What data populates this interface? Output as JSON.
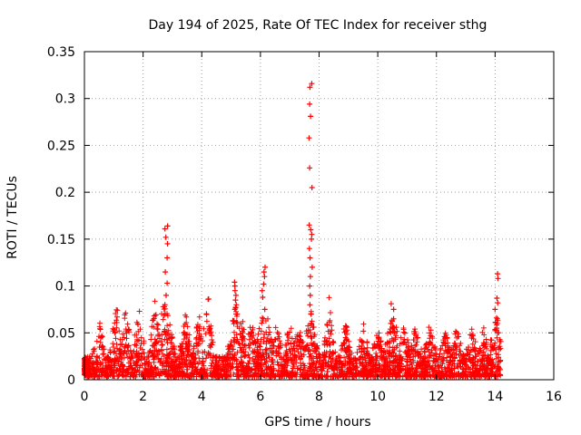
{
  "chart_data": {
    "type": "scatter",
    "title": "Day 194 of 2025, Rate Of TEC Index for receiver sthg",
    "xlabel": "GPS time / hours",
    "ylabel": "ROTI / TECUs",
    "xlim": [
      0,
      16
    ],
    "ylim": [
      0,
      0.35
    ],
    "grid": true,
    "marker": "+",
    "series": [
      {
        "name": "ROTI",
        "color": "#ff0000",
        "description": "dense band of samples 0–0.05 TECUs from 0.0 to 14.2 h with peaks",
        "peaks": [
          {
            "x": 2.8,
            "ys": [
              0.164,
              0.161,
              0.152,
              0.145,
              0.13,
              0.115,
              0.103,
              0.09,
              0.08,
              0.07
            ]
          },
          {
            "x": 5.15,
            "ys": [
              0.104,
              0.1,
              0.095,
              0.09,
              0.085,
              0.08,
              0.075,
              0.07
            ]
          },
          {
            "x": 6.1,
            "ys": [
              0.12,
              0.115,
              0.11,
              0.102,
              0.095,
              0.088,
              0.075,
              0.065
            ]
          },
          {
            "x": 7.72,
            "ys": [
              0.316,
              0.312,
              0.294,
              0.281,
              0.258,
              0.226,
              0.205,
              0.165,
              0.16,
              0.155,
              0.15,
              0.14,
              0.13,
              0.12,
              0.11,
              0.1,
              0.09,
              0.08,
              0.07
            ]
          },
          {
            "x": 10.5,
            "ys": [
              0.081,
              0.075,
              0.065,
              0.06,
              0.055
            ]
          },
          {
            "x": 14.05,
            "ys": [
              0.113,
              0.108,
              0.087,
              0.082,
              0.075,
              0.065,
              0.055,
              0.05
            ]
          }
        ]
      }
    ],
    "xticks": [
      0,
      2,
      4,
      6,
      8,
      10,
      12,
      14,
      16
    ],
    "xtick_labels": [
      "0",
      "2",
      "4",
      "6",
      "8",
      "10",
      "12",
      "14",
      "16"
    ],
    "yticks": [
      0,
      0.05,
      0.1,
      0.15,
      0.2,
      0.25,
      0.3,
      0.35
    ],
    "ytick_labels": [
      "0",
      "0.05",
      "0.1",
      "0.15",
      "0.2",
      "0.25",
      "0.3",
      "0.35"
    ]
  }
}
